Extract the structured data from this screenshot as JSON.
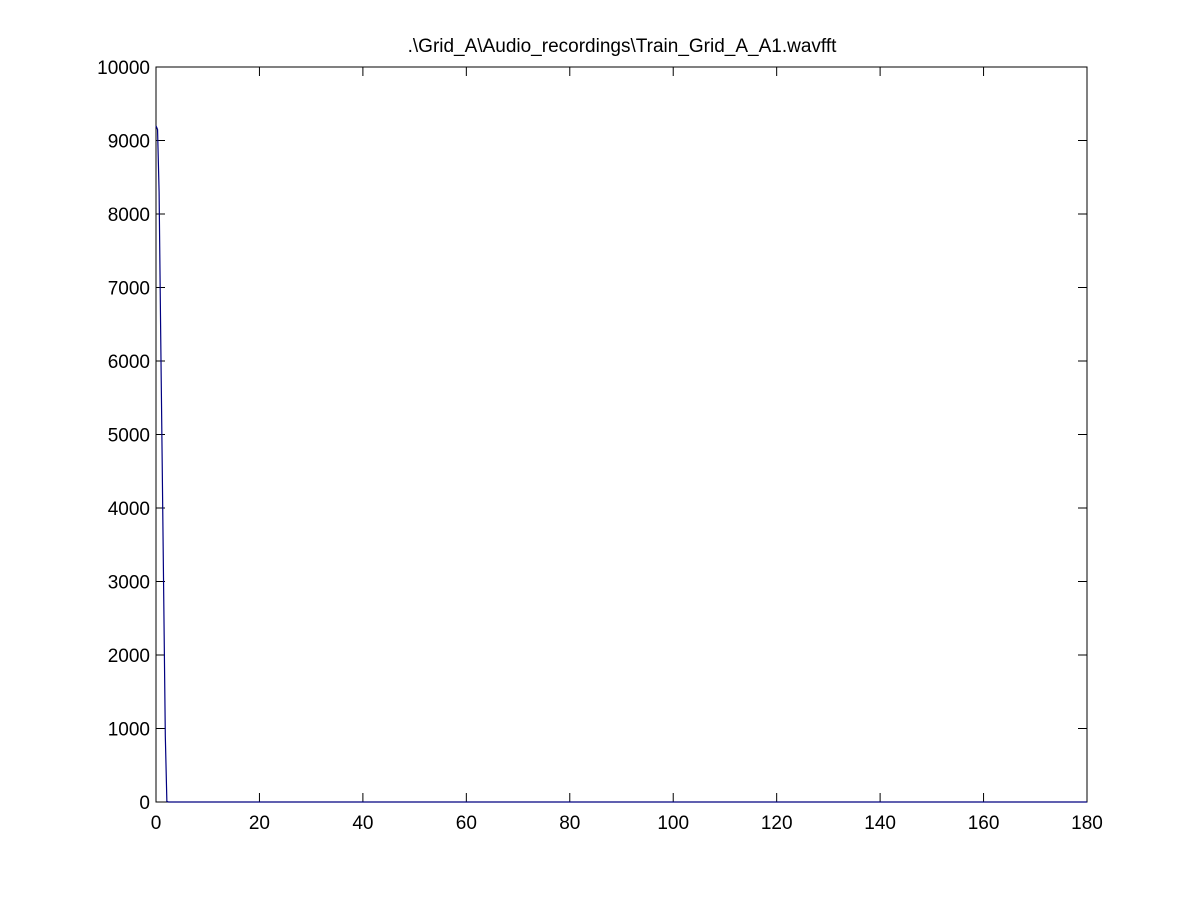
{
  "chart_data": {
    "type": "line",
    "title": ".\\Grid_A\\Audio_recordings\\Train_Grid_A_A1.wavfft",
    "xlabel": "",
    "ylabel": "",
    "xlim": [
      0,
      180
    ],
    "ylim": [
      0,
      10000
    ],
    "grid": false,
    "x_ticks": [
      0,
      20,
      40,
      60,
      80,
      100,
      120,
      140,
      160,
      180
    ],
    "y_ticks": [
      0,
      1000,
      2000,
      3000,
      4000,
      5000,
      6000,
      7000,
      8000,
      9000,
      10000
    ],
    "x_tick_labels": [
      "0",
      "20",
      "40",
      "60",
      "80",
      "100",
      "120",
      "140",
      "160",
      "180"
    ],
    "y_tick_labels": [
      "0",
      "1000",
      "2000",
      "3000",
      "4000",
      "5000",
      "6000",
      "7000",
      "8000",
      "9000",
      "10000"
    ],
    "series": [
      {
        "color": "#000080",
        "x": [
          0,
          0.3,
          0.6,
          0.9,
          1.2,
          1.5,
          1.8,
          2.1,
          2.4,
          3,
          10,
          30,
          60,
          90,
          120,
          150,
          180
        ],
        "y": [
          9200,
          9150,
          8300,
          6400,
          4600,
          2750,
          900,
          10,
          0,
          0,
          0,
          0,
          0,
          0,
          0,
          0,
          0
        ]
      }
    ]
  }
}
